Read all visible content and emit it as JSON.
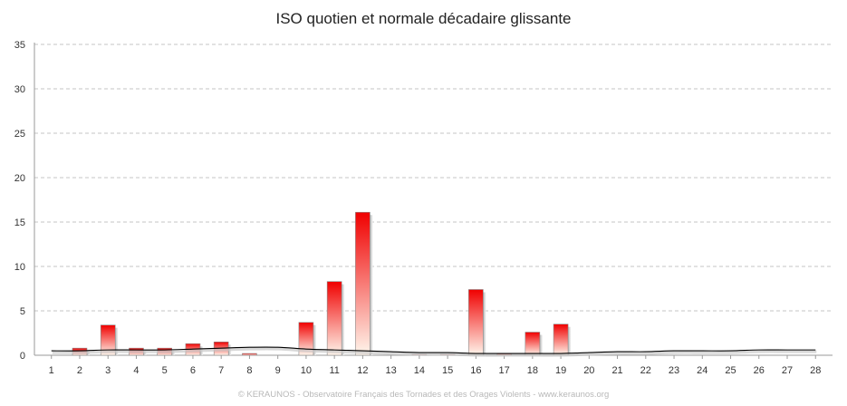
{
  "chart_data": {
    "type": "bar",
    "title": "ISO quotien et normale décadaire glissante",
    "xlabel": "",
    "ylabel": "",
    "categories": [
      "1",
      "2",
      "3",
      "4",
      "5",
      "6",
      "7",
      "8",
      "9",
      "10",
      "11",
      "12",
      "13",
      "14",
      "15",
      "16",
      "17",
      "18",
      "19",
      "20",
      "21",
      "22",
      "23",
      "24",
      "25",
      "26",
      "27",
      "28"
    ],
    "ylim": [
      0,
      35
    ],
    "yticks": [
      0,
      5,
      10,
      15,
      20,
      25,
      30,
      35
    ],
    "grid": true,
    "legend": "none",
    "series": [
      {
        "type": "bar",
        "values": [
          0,
          0.8,
          3.4,
          0.8,
          0.8,
          1.3,
          1.5,
          0.2,
          0,
          3.7,
          8.3,
          16.1,
          0,
          0.1,
          0.1,
          7.4,
          0.2,
          2.6,
          3.5,
          0,
          0,
          0,
          0,
          0,
          0,
          0,
          0,
          0
        ],
        "color": "#f00000"
      },
      {
        "type": "line",
        "values": [
          0.5,
          0.5,
          0.6,
          0.6,
          0.6,
          0.7,
          0.8,
          0.9,
          0.9,
          0.7,
          0.6,
          0.5,
          0.4,
          0.3,
          0.3,
          0.2,
          0.2,
          0.2,
          0.2,
          0.3,
          0.4,
          0.4,
          0.5,
          0.5,
          0.5,
          0.6,
          0.6,
          0.6
        ],
        "color": "#000000"
      }
    ]
  },
  "footer": "© KERAUNOS - Observatoire Français des Tornades et des Orages Violents - www.keraunos.org"
}
